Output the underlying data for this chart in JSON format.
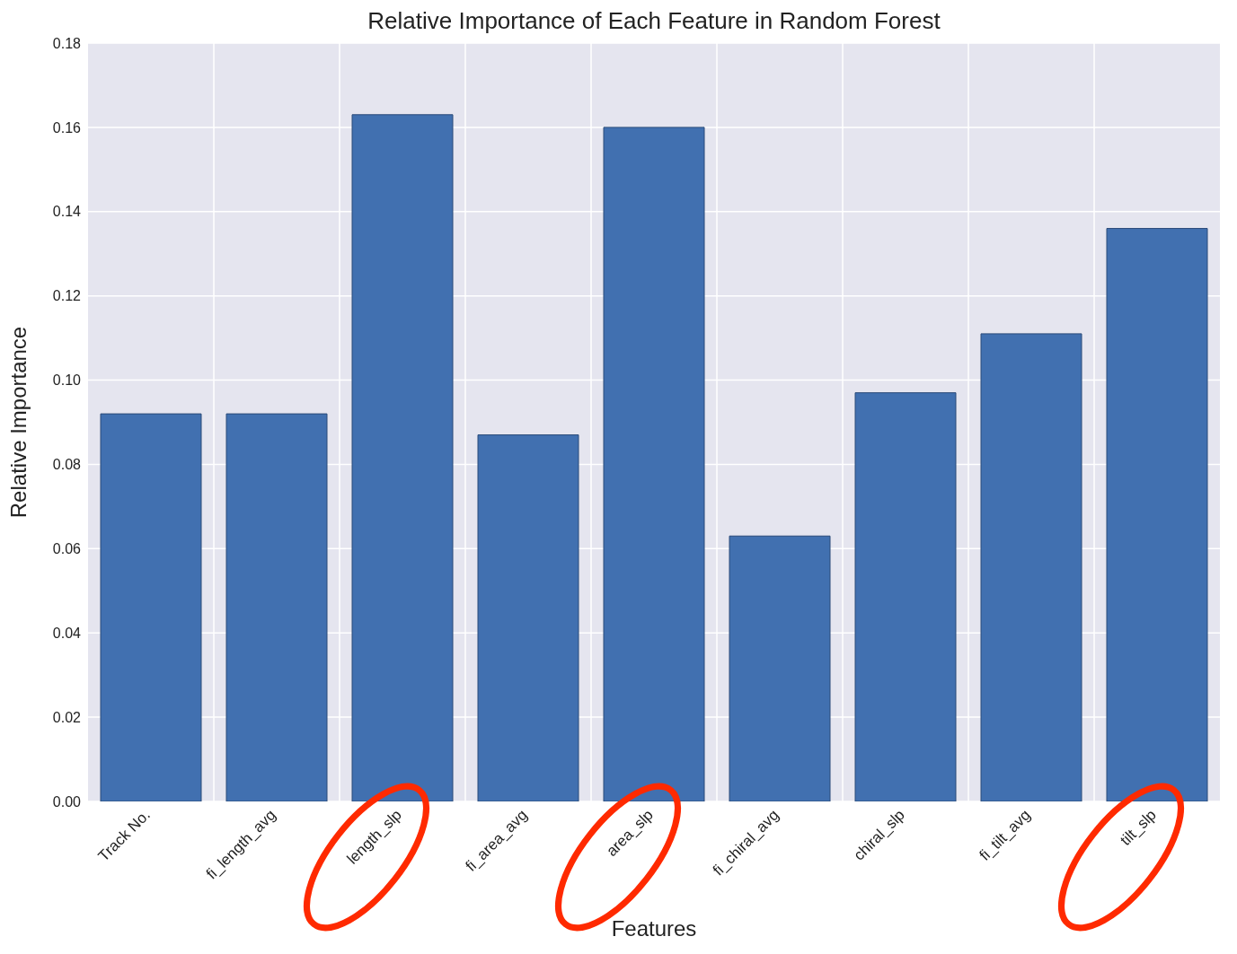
{
  "chart_data": {
    "type": "bar",
    "title": "Relative Importance of Each Feature in Random Forest",
    "xlabel": "Features",
    "ylabel": "Relative Importance",
    "categories": [
      "Track No.",
      "fi_length_avg",
      "length_slp",
      "fi_area_avg",
      "area_slp",
      "fi_chiral_avg",
      "chiral_slp",
      "fi_tilt_avg",
      "tilt_slp"
    ],
    "values": [
      0.092,
      0.092,
      0.163,
      0.087,
      0.16,
      0.063,
      0.097,
      0.111,
      0.136
    ],
    "color": "#4170b0",
    "ylim": [
      0,
      0.18
    ],
    "yticks": [
      {
        "value": 0,
        "label": "0.00"
      },
      {
        "value": 0.02,
        "label": "0.02"
      },
      {
        "value": 0.04,
        "label": "0.04"
      },
      {
        "value": 0.06,
        "label": "0.06"
      },
      {
        "value": 0.08,
        "label": "0.08"
      },
      {
        "value": 0.1,
        "label": "0.10"
      },
      {
        "value": 0.12,
        "label": "0.12"
      },
      {
        "value": 0.14,
        "label": "0.14"
      },
      {
        "value": 0.16,
        "label": "0.16"
      },
      {
        "value": 0.18,
        "label": "0.18"
      }
    ],
    "grid": true
  }
}
